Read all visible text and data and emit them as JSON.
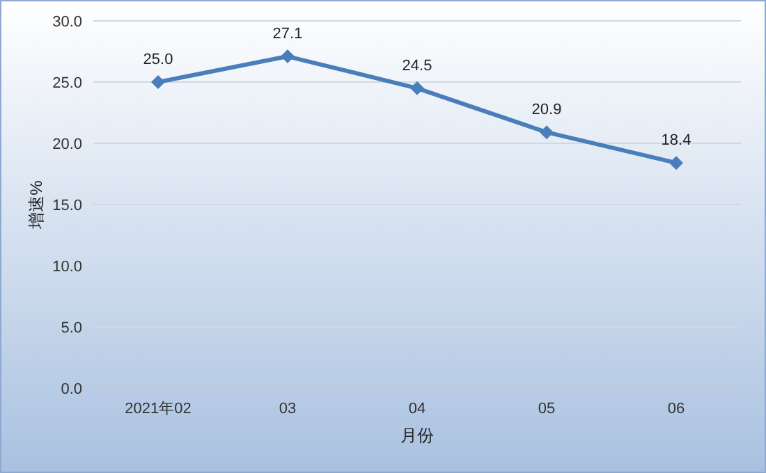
{
  "chart_data": {
    "type": "line",
    "xlabel": "月份",
    "ylabel": "增速%",
    "categories": [
      "2021年02",
      "03",
      "04",
      "05",
      "06"
    ],
    "series": [
      {
        "color": "#4a7ebb",
        "values": [
          25.0,
          27.1,
          24.5,
          20.9,
          18.4
        ],
        "value_labels": [
          "25.0",
          "27.1",
          "24.5",
          "20.9",
          "18.4"
        ]
      }
    ],
    "ylim": [
      0,
      30
    ],
    "yticks": [
      {
        "value": 0,
        "label": "0.0"
      },
      {
        "value": 5,
        "label": "5.0"
      },
      {
        "value": 10,
        "label": "10.0"
      },
      {
        "value": 15,
        "label": "15.0"
      },
      {
        "value": 20,
        "label": "20.0"
      },
      {
        "value": 25,
        "label": "25.0"
      },
      {
        "value": 30,
        "label": "30.0"
      }
    ],
    "grid": "y",
    "marker": "diamond",
    "line_style": "solid"
  }
}
